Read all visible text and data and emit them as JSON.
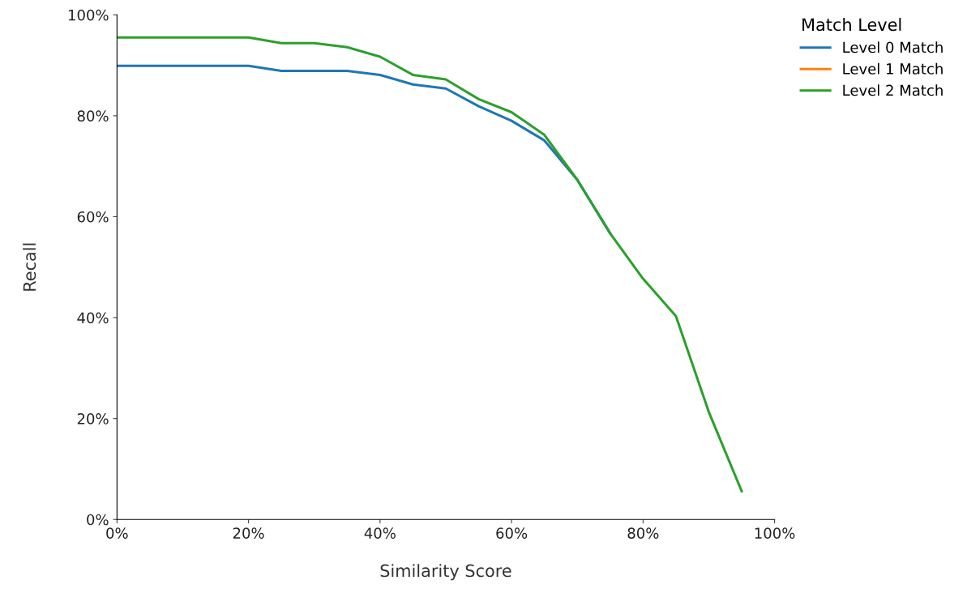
{
  "chart_data": {
    "type": "line",
    "xlabel": "Similarity Score",
    "ylabel": "Recall",
    "legend_title": "Match Level",
    "legend": "top right",
    "grid": false,
    "x": [
      0,
      5,
      10,
      15,
      20,
      25,
      30,
      35,
      40,
      45,
      50,
      55,
      60,
      65,
      70,
      75,
      80,
      85,
      90,
      95
    ],
    "series": [
      {
        "name": "Level 0 Match",
        "color": "#1f77b4",
        "values": [
          89.9,
          89.9,
          89.9,
          89.9,
          89.9,
          88.9,
          88.9,
          88.9,
          88.1,
          86.2,
          85.4,
          81.9,
          79.0,
          75.1,
          67.3,
          56.7,
          null,
          null,
          null,
          null
        ]
      },
      {
        "name": "Level 1 Match",
        "color": "#ff7f0e",
        "values": [
          null,
          null,
          null,
          null,
          null,
          null,
          null,
          null,
          null,
          null,
          null,
          null,
          null,
          null,
          null,
          null,
          null,
          null,
          null,
          null
        ]
      },
      {
        "name": "Level 2 Match",
        "color": "#2ca02c",
        "values": [
          95.5,
          95.5,
          95.5,
          95.5,
          95.5,
          94.4,
          94.4,
          93.6,
          91.7,
          88.1,
          87.2,
          83.3,
          80.7,
          76.2,
          67.3,
          56.7,
          47.7,
          40.3,
          21.3,
          5.6
        ]
      }
    ],
    "xlim": [
      0,
      100
    ],
    "xticks": [
      {
        "value": 0,
        "label": "0%"
      },
      {
        "value": 20,
        "label": "20%"
      },
      {
        "value": 40,
        "label": "40%"
      },
      {
        "value": 60,
        "label": "60%"
      },
      {
        "value": 80,
        "label": "80%"
      },
      {
        "value": 100,
        "label": "100%"
      }
    ],
    "ylim": [
      0,
      100
    ],
    "yticks": [
      {
        "value": 0,
        "label": "0%"
      },
      {
        "value": 20,
        "label": "20%"
      },
      {
        "value": 40,
        "label": "40%"
      },
      {
        "value": 60,
        "label": "60%"
      },
      {
        "value": 80,
        "label": "80%"
      },
      {
        "value": 100,
        "label": "100%"
      }
    ]
  }
}
